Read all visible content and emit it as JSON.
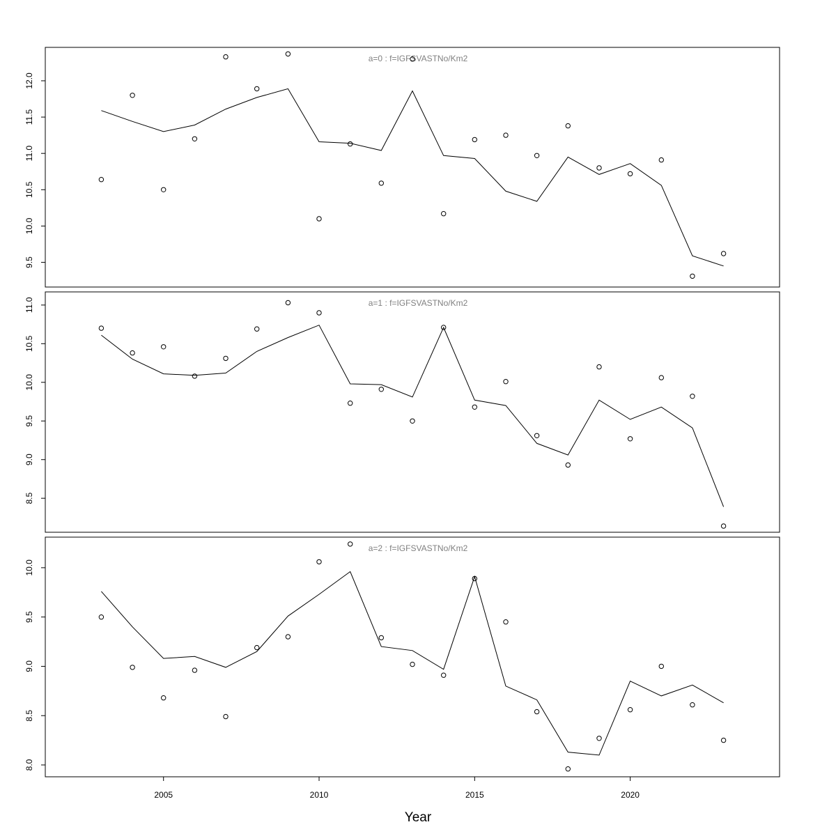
{
  "chart_data": {
    "type": "scatter",
    "xlabel": "Year",
    "x_ticks": [
      2005,
      2010,
      2015,
      2020
    ],
    "xlim": [
      2001.2,
      2024.8
    ],
    "panels": [
      {
        "title": "a=0  :  f=IGFSVASTNo/Km2",
        "ylim": [
          9.16,
          12.46
        ],
        "y_ticks": [
          "9.5",
          "10.0",
          "10.5",
          "11.0",
          "11.5",
          "12.0"
        ],
        "series": [
          {
            "kind": "points",
            "x": [
              2003,
              2004,
              2005,
              2006,
              2007,
              2008,
              2009,
              2010,
              2011,
              2012,
              2013,
              2014,
              2015,
              2016,
              2017,
              2018,
              2019,
              2020,
              2021,
              2022,
              2023
            ],
            "values": [
              10.64,
              11.8,
              10.5,
              11.2,
              12.33,
              11.89,
              12.37,
              10.1,
              11.13,
              10.59,
              12.3,
              10.17,
              11.19,
              11.25,
              10.97,
              11.38,
              10.8,
              10.72,
              10.91,
              9.31,
              9.62
            ]
          },
          {
            "kind": "line",
            "x": [
              2003,
              2004,
              2005,
              2006,
              2007,
              2008,
              2009,
              2010,
              2011,
              2012,
              2013,
              2014,
              2015,
              2016,
              2017,
              2018,
              2019,
              2020,
              2021,
              2022,
              2023
            ],
            "values": [
              11.59,
              11.44,
              11.3,
              11.39,
              11.61,
              11.77,
              11.89,
              11.16,
              11.14,
              11.04,
              11.86,
              10.97,
              10.93,
              10.48,
              10.34,
              10.95,
              10.71,
              10.86,
              10.56,
              9.59,
              9.45
            ]
          }
        ]
      },
      {
        "title": "a=1  :  f=IGFSVASTNo/Km2",
        "ylim": [
          8.06,
          11.17
        ],
        "y_ticks": [
          "8.5",
          "9.0",
          "9.5",
          "10.0",
          "10.5",
          "11.0"
        ],
        "series": [
          {
            "kind": "points",
            "x": [
              2003,
              2004,
              2005,
              2006,
              2007,
              2008,
              2009,
              2010,
              2011,
              2012,
              2013,
              2014,
              2015,
              2016,
              2017,
              2018,
              2019,
              2020,
              2021,
              2022,
              2023
            ],
            "values": [
              10.7,
              10.38,
              10.46,
              10.08,
              10.31,
              10.69,
              11.03,
              10.9,
              9.73,
              9.91,
              9.5,
              10.71,
              9.68,
              10.01,
              9.31,
              8.93,
              10.2,
              9.27,
              10.06,
              9.82,
              8.14
            ]
          },
          {
            "kind": "line",
            "x": [
              2003,
              2004,
              2005,
              2006,
              2007,
              2008,
              2009,
              2010,
              2011,
              2012,
              2013,
              2014,
              2015,
              2016,
              2017,
              2018,
              2019,
              2020,
              2021,
              2022,
              2023
            ],
            "values": [
              10.61,
              10.3,
              10.11,
              10.09,
              10.12,
              10.4,
              10.58,
              10.74,
              9.98,
              9.97,
              9.81,
              10.71,
              9.77,
              9.7,
              9.21,
              9.06,
              9.77,
              9.52,
              9.68,
              9.41,
              8.39
            ]
          }
        ]
      },
      {
        "title": "a=2  :  f=IGFSVASTNo/Km2",
        "ylim": [
          7.88,
          10.31
        ],
        "y_ticks": [
          "8.0",
          "8.5",
          "9.0",
          "9.5",
          "10.0"
        ],
        "series": [
          {
            "kind": "points",
            "x": [
              2003,
              2004,
              2005,
              2006,
              2007,
              2008,
              2009,
              2010,
              2011,
              2012,
              2013,
              2014,
              2015,
              2016,
              2017,
              2018,
              2019,
              2020,
              2021,
              2022,
              2023
            ],
            "values": [
              9.5,
              8.99,
              8.68,
              8.96,
              8.49,
              9.19,
              9.3,
              10.06,
              10.24,
              9.29,
              9.02,
              8.91,
              9.89,
              9.45,
              8.54,
              7.96,
              8.27,
              8.56,
              9.0,
              8.61,
              8.25
            ]
          },
          {
            "kind": "line",
            "x": [
              2003,
              2004,
              2005,
              2006,
              2007,
              2008,
              2009,
              2010,
              2011,
              2012,
              2013,
              2014,
              2015,
              2016,
              2017,
              2018,
              2019,
              2020,
              2021,
              2022,
              2023
            ],
            "values": [
              9.76,
              9.4,
              9.08,
              9.1,
              8.99,
              9.15,
              9.51,
              9.73,
              9.96,
              9.2,
              9.16,
              8.97,
              9.91,
              8.8,
              8.66,
              8.13,
              8.1,
              8.85,
              8.7,
              8.81,
              8.63
            ]
          }
        ]
      }
    ]
  }
}
